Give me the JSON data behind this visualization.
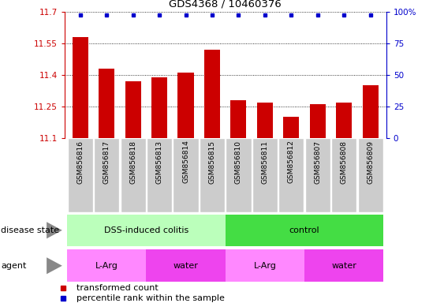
{
  "title": "GDS4368 / 10460376",
  "samples": [
    "GSM856816",
    "GSM856817",
    "GSM856818",
    "GSM856813",
    "GSM856814",
    "GSM856815",
    "GSM856810",
    "GSM856811",
    "GSM856812",
    "GSM856807",
    "GSM856808",
    "GSM856809"
  ],
  "bar_values": [
    11.58,
    11.43,
    11.37,
    11.39,
    11.41,
    11.52,
    11.28,
    11.27,
    11.2,
    11.26,
    11.27,
    11.35
  ],
  "ylim_left": [
    11.1,
    11.7
  ],
  "ylim_right": [
    0,
    100
  ],
  "yticks_left": [
    11.1,
    11.25,
    11.4,
    11.55,
    11.7
  ],
  "yticks_right": [
    0,
    25,
    50,
    75,
    100
  ],
  "bar_color": "#cc0000",
  "dot_color": "#0000cc",
  "disease_state_groups": [
    {
      "label": "DSS-induced colitis",
      "start": 0,
      "end": 6,
      "color": "#bbffbb"
    },
    {
      "label": "control",
      "start": 6,
      "end": 12,
      "color": "#44dd44"
    }
  ],
  "agent_groups": [
    {
      "label": "L-Arg",
      "start": 0,
      "end": 3,
      "color": "#ff88ff"
    },
    {
      "label": "water",
      "start": 3,
      "end": 6,
      "color": "#ee44ee"
    },
    {
      "label": "L-Arg",
      "start": 6,
      "end": 9,
      "color": "#ff88ff"
    },
    {
      "label": "water",
      "start": 9,
      "end": 12,
      "color": "#ee44ee"
    }
  ],
  "legend_items": [
    {
      "label": "transformed count",
      "color": "#cc0000"
    },
    {
      "label": "percentile rank within the sample",
      "color": "#0000cc"
    }
  ],
  "ylabel_left_color": "#cc0000",
  "ylabel_right_color": "#0000cc",
  "disease_state_label": "disease state",
  "agent_label": "agent",
  "xtick_bg_color": "#cccccc",
  "background_color": "#ffffff"
}
